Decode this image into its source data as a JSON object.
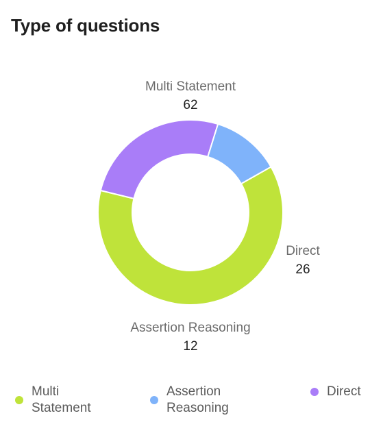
{
  "title": "Type of questions",
  "colors": {
    "multi_statement": "#bfe33a",
    "assertion_reasoning": "#7fb3fa",
    "direct": "#a97df8"
  },
  "chart_data": {
    "type": "pie",
    "variant": "donut",
    "title": "Type of questions",
    "slices": [
      {
        "label": "Multi Statement",
        "value": 62,
        "color": "#bfe33a"
      },
      {
        "label": "Direct",
        "value": 26,
        "color": "#a97df8"
      },
      {
        "label": "Assertion Reasoning",
        "value": 12,
        "color": "#7fb3fa"
      }
    ]
  },
  "legend": {
    "placement": "bottom",
    "items": [
      {
        "label": "Multi\nStatement",
        "color": "#bfe33a",
        "icon": "dot-icon"
      },
      {
        "label": "Assertion\nReasoning",
        "color": "#7fb3fa",
        "icon": "dot-icon"
      },
      {
        "label": "Direct",
        "color": "#a97df8",
        "icon": "dot-icon"
      }
    ]
  }
}
